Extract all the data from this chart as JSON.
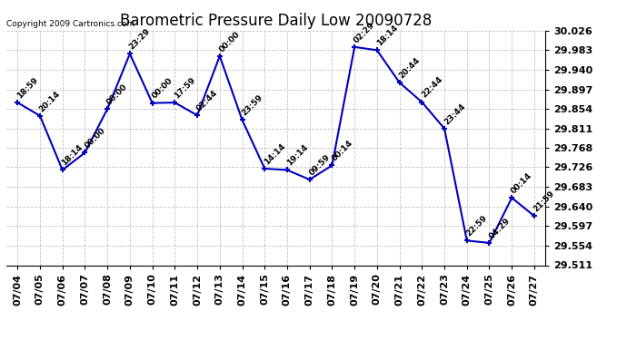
{
  "title": "Barometric Pressure Daily Low 20090728",
  "copyright": "Copyright 2009 Cartronics.com",
  "x_labels": [
    "07/04",
    "07/05",
    "07/06",
    "07/07",
    "07/08",
    "07/09",
    "07/10",
    "07/11",
    "07/12",
    "07/13",
    "07/14",
    "07/15",
    "07/16",
    "07/17",
    "07/18",
    "07/19",
    "07/20",
    "07/21",
    "07/22",
    "07/23",
    "07/24",
    "07/25",
    "07/26",
    "07/27"
  ],
  "y_values": [
    29.868,
    29.839,
    29.72,
    29.758,
    29.854,
    29.975,
    29.867,
    29.868,
    29.84,
    29.97,
    29.83,
    29.723,
    29.72,
    29.699,
    29.73,
    29.99,
    29.983,
    29.912,
    29.869,
    29.811,
    29.565,
    29.56,
    29.659,
    29.619
  ],
  "point_labels": [
    "18:59",
    "20:14",
    "18:14",
    "00:00",
    "00:00",
    "23:29",
    "00:00",
    "17:59",
    "02:44",
    "00:00",
    "23:59",
    "14:14",
    "19:14",
    "09:59",
    "00:14",
    "02:29",
    "18:14",
    "20:44",
    "22:44",
    "23:44",
    "22:59",
    "04:29",
    "00:14",
    "21:59"
  ],
  "ylim_min": 29.511,
  "ylim_max": 30.026,
  "yticks": [
    29.511,
    29.554,
    29.597,
    29.64,
    29.683,
    29.726,
    29.768,
    29.811,
    29.854,
    29.897,
    29.94,
    29.983,
    30.026
  ],
  "line_color": "#0000bb",
  "marker_color": "#0000bb",
  "bg_color": "#ffffff",
  "grid_color": "#bbbbbb",
  "title_fontsize": 12,
  "label_fontsize": 6.5,
  "tick_fontsize": 8,
  "copyright_fontsize": 6.5
}
